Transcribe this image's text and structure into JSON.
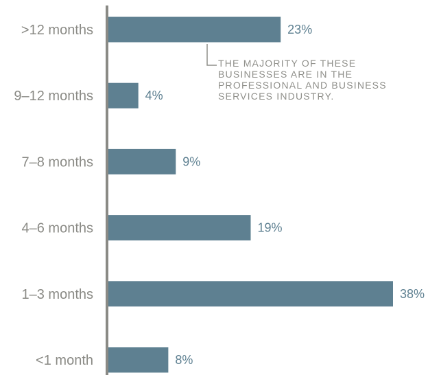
{
  "chart_data": {
    "type": "bar",
    "orientation": "horizontal",
    "categories": [
      ">12 months",
      "9–12 months",
      "7–8 months",
      "4–6 months",
      "1–3 months",
      "<1 month"
    ],
    "values": [
      23,
      4,
      9,
      19,
      38,
      8
    ],
    "value_labels": [
      "23%",
      "4%",
      "9%",
      "19%",
      "38%",
      "8%"
    ],
    "title": "",
    "xlabel": "",
    "ylabel": "",
    "xlim": [
      0,
      38
    ],
    "grid": false,
    "legend": "none",
    "annotation": {
      "category": ">12 months",
      "lines": [
        "THE MAJORITY OF THESE",
        "BUSINESSES ARE IN THE",
        "PROFESSIONAL AND BUSINESS",
        "SERVICES INDUSTRY."
      ]
    }
  },
  "colors": {
    "bar": "#5e8091",
    "axis": "#8a8a85",
    "category_text": "#8a8a85",
    "value_text": "#5e8091",
    "annotation_text": "#8f8f8a"
  }
}
